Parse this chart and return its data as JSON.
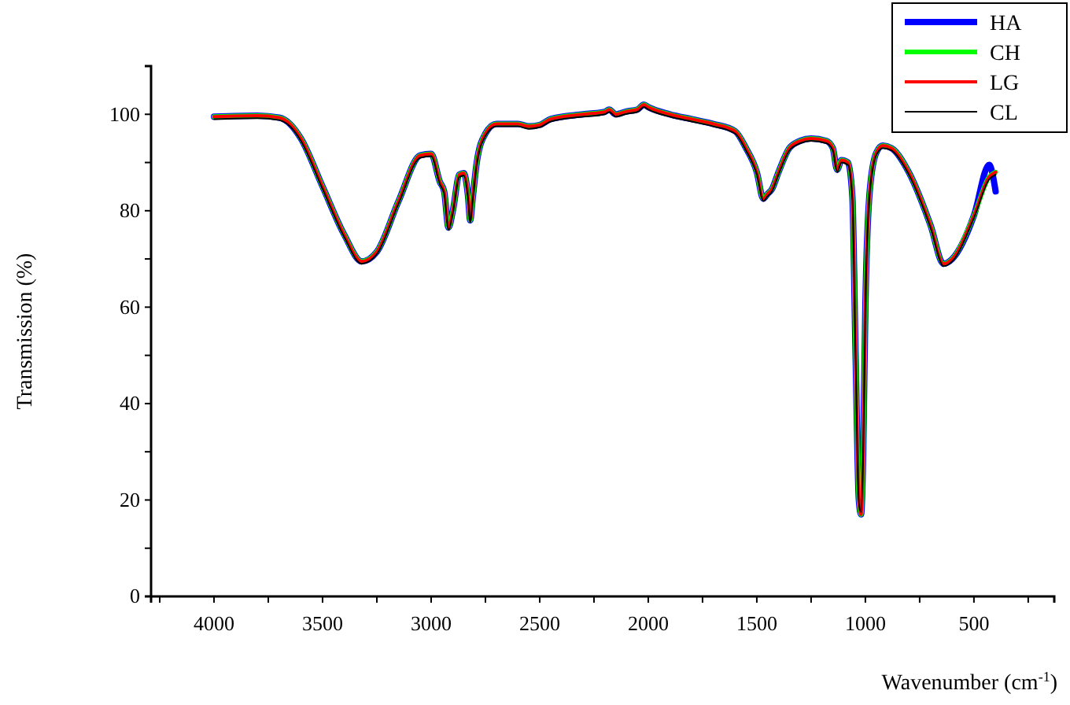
{
  "chart_data": {
    "type": "line",
    "xlabel": "Wavenumber (cm$^{-1}$)",
    "ylabel": "Transmission (%)",
    "xlim": [
      4290,
      130
    ],
    "ylim": [
      0,
      110
    ],
    "xticks": [
      {
        "value": 4250,
        "label": null
      },
      4000,
      {
        "value": 3750,
        "label": null
      },
      3500,
      {
        "value": 3250,
        "label": null
      },
      3000,
      {
        "value": 2750,
        "label": null
      },
      2500,
      {
        "value": 2250,
        "label": null
      },
      2000,
      {
        "value": 1750,
        "label": null
      },
      1500,
      {
        "value": 1250,
        "label": null
      },
      1000,
      {
        "value": 750,
        "label": null
      },
      500,
      {
        "value": 250,
        "label": null
      }
    ],
    "yticks": [
      0,
      {
        "value": 10,
        "label": null
      },
      20,
      {
        "value": 30,
        "label": null
      },
      40,
      {
        "value": 50,
        "label": null
      },
      60,
      {
        "value": 70,
        "label": null
      },
      80,
      {
        "value": 90,
        "label": null
      },
      100
    ],
    "grid": false,
    "legend": "top right",
    "line_style": "solid",
    "marker": "none",
    "x": [
      4000,
      3800,
      3700,
      3650,
      3600,
      3500,
      3400,
      3320,
      3250,
      3150,
      3050,
      3000,
      2960,
      2940,
      2920,
      2900,
      2870,
      2850,
      2830,
      2820,
      2810,
      2790,
      2750,
      2700,
      2600,
      2550,
      2500,
      2450,
      2300,
      2200,
      2180,
      2150,
      2100,
      2050,
      2020,
      2000,
      1900,
      1800,
      1700,
      1600,
      1550,
      1500,
      1470,
      1450,
      1430,
      1400,
      1350,
      1300,
      1250,
      1180,
      1150,
      1130,
      1110,
      1080,
      1060,
      1045,
      1030,
      1020,
      1010,
      1000,
      980,
      950,
      920,
      880,
      800,
      700,
      640,
      600,
      500,
      430,
      400
    ],
    "series": [
      {
        "name": "HA",
        "color": "#0000ff",
        "values": [
          99.5,
          99.7,
          99.3,
          98,
          95,
          85,
          75,
          69.5,
          71.5,
          82,
          91.5,
          91.8,
          86,
          84,
          76.5,
          80,
          87.5,
          87.8,
          83,
          78,
          82,
          90,
          96,
          98,
          98,
          97.5,
          97.8,
          99,
          100,
          100.5,
          101,
          100,
          100.6,
          101,
          102,
          101.5,
          100,
          99,
          98,
          96.5,
          93,
          88,
          82.5,
          83.5,
          84.5,
          88,
          93,
          94.5,
          95,
          94.5,
          93,
          88.5,
          90.5,
          90,
          83,
          50,
          20,
          17,
          30,
          60,
          84,
          92,
          93.5,
          93,
          88,
          77,
          69,
          70,
          79,
          89.5,
          84
        ]
      },
      {
        "name": "CH",
        "color": "#00ff00",
        "values": [
          99.5,
          99.7,
          99.3,
          98,
          95,
          85,
          75,
          69.5,
          71.5,
          82,
          91.5,
          91.8,
          86,
          84,
          76.5,
          80,
          87.5,
          87.8,
          83,
          78,
          82,
          90,
          96,
          98,
          98,
          97.5,
          97.8,
          99,
          100,
          100.5,
          101,
          100,
          100.6,
          101,
          102,
          101.5,
          100,
          99,
          98,
          96.5,
          93,
          88,
          82.5,
          83.5,
          84.5,
          88,
          93,
          94.5,
          95,
          94.5,
          93,
          88.5,
          90.5,
          90,
          83,
          50,
          20,
          17,
          30,
          60,
          84,
          92,
          93.5,
          93,
          88,
          77,
          69,
          70,
          79,
          87,
          88
        ]
      },
      {
        "name": "LG",
        "color": "#ff0000",
        "values": [
          99.5,
          99.7,
          99.3,
          98,
          95,
          85,
          75,
          69.5,
          71.5,
          82,
          91.5,
          91.8,
          86,
          84,
          76.5,
          80,
          87.5,
          87.8,
          83,
          78,
          82,
          90,
          96,
          98,
          98,
          97.5,
          97.8,
          99,
          100,
          100.5,
          101,
          100,
          100.6,
          101,
          102,
          101.5,
          100,
          99,
          98,
          96.5,
          93,
          88,
          82.5,
          83.5,
          84.5,
          88,
          93,
          94.5,
          95,
          94.5,
          93,
          88.5,
          90.5,
          90,
          83,
          50,
          20,
          17,
          30,
          60,
          84,
          92,
          93.5,
          93,
          88,
          77,
          69,
          70,
          79,
          87,
          88
        ]
      },
      {
        "name": "CL",
        "color": "#000000",
        "values": [
          99,
          99.2,
          98.8,
          97.5,
          94.5,
          84.5,
          74.5,
          69,
          71,
          81.5,
          91,
          91.3,
          85.5,
          83.5,
          76,
          79.5,
          87,
          87.3,
          82.5,
          77.5,
          81.5,
          89.5,
          95.5,
          97.5,
          97.5,
          97,
          97.3,
          98.5,
          99.5,
          100,
          100.5,
          99.5,
          100.1,
          100.5,
          101.5,
          101,
          99.5,
          98.5,
          97.5,
          96,
          92.5,
          87.5,
          82,
          83,
          84,
          87.5,
          92.5,
          94,
          94.5,
          94,
          92.5,
          88,
          90,
          89.5,
          82.5,
          49.5,
          19.5,
          17.5,
          29.5,
          59.5,
          83.5,
          91.5,
          93,
          92.5,
          87.5,
          76.5,
          68.5,
          69.5,
          78.5,
          86.5,
          87.5
        ]
      }
    ]
  }
}
